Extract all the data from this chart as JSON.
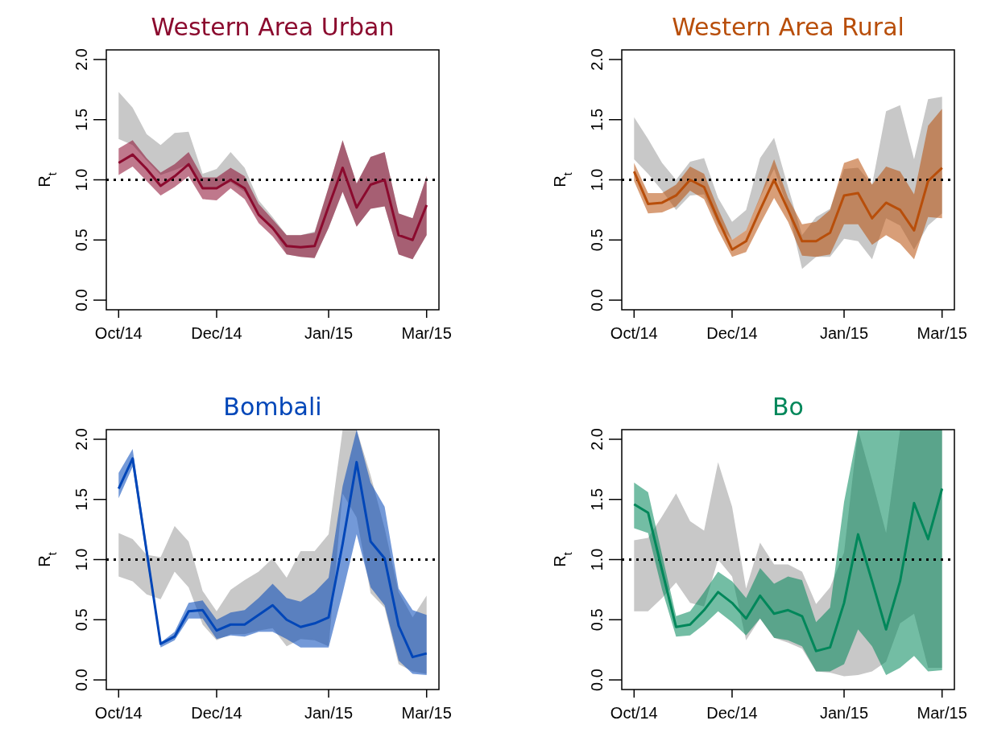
{
  "chart_data": [
    {
      "type": "line",
      "title": "Western Area Urban",
      "ylabel": "R$_{t}$",
      "categories": [
        "Oct/14",
        null,
        null,
        null,
        null,
        null,
        null,
        "Dec/14",
        null,
        null,
        null,
        null,
        null,
        null,
        null,
        "Jan/15",
        null,
        null,
        null,
        null,
        null,
        null,
        "Mar/15"
      ],
      "ylim": [
        -0.08,
        2.08
      ],
      "yticks": [
        {
          "value": 0,
          "label": "0.0"
        },
        {
          "value": 0.5,
          "label": "0.5"
        },
        {
          "value": 1,
          "label": "1.0"
        },
        {
          "value": 1.5,
          "label": "1.5"
        },
        {
          "value": 2,
          "label": "2.0"
        }
      ],
      "ref_lines": [
        {
          "axis": "y",
          "value": 1,
          "line_style": "dotted",
          "color": "#000000"
        }
      ],
      "series": [
        {
          "color": "#c8c8c8",
          "values": [
            null,
            null,
            null,
            null,
            null,
            null,
            null,
            null,
            null,
            null,
            null,
            null,
            null,
            null,
            null,
            null,
            null,
            null,
            null,
            null,
            null,
            null,
            null
          ],
          "lower": [
            1.34,
            1.29,
            1.16,
            1.04,
            1.08,
            1.13,
            0.93,
            0.93,
            0.98,
            0.9,
            0.72,
            0.6,
            0.38,
            0.36,
            0.35,
            0.6,
            0.9,
            0.61,
            0.76,
            0.78,
            0.38,
            0.34,
            0.54
          ],
          "upper": [
            1.73,
            1.6,
            1.38,
            1.29,
            1.39,
            1.4,
            1.05,
            1.09,
            1.23,
            1.1,
            0.83,
            0.69,
            0.54,
            0.54,
            0.57,
            0.94,
            1.33,
            0.97,
            1.19,
            1.23,
            0.72,
            0.68,
            1.03
          ]
        },
        {
          "color": "#8b0a2e",
          "values": [
            1.14,
            1.21,
            1.09,
            0.95,
            1.03,
            1.13,
            0.93,
            0.93,
            1.0,
            0.93,
            0.71,
            0.6,
            0.45,
            0.44,
            0.45,
            0.78,
            1.1,
            0.77,
            0.96,
            1.0,
            0.54,
            0.5,
            0.79
          ],
          "lower": [
            1.04,
            1.11,
            0.99,
            0.87,
            0.94,
            1.03,
            0.84,
            0.83,
            0.93,
            0.84,
            0.64,
            0.53,
            0.38,
            0.36,
            0.35,
            0.6,
            0.9,
            0.61,
            0.76,
            0.78,
            0.38,
            0.34,
            0.54
          ],
          "upper": [
            1.26,
            1.33,
            1.18,
            1.06,
            1.13,
            1.23,
            1.02,
            1.02,
            1.1,
            1.03,
            0.8,
            0.67,
            0.54,
            0.54,
            0.56,
            0.94,
            1.33,
            0.97,
            1.19,
            1.23,
            0.72,
            0.68,
            1.03
          ]
        }
      ]
    },
    {
      "type": "line",
      "title": "Western Area Rural",
      "ylabel": "R$_{t}$",
      "categories": [
        "Oct/14",
        null,
        null,
        null,
        null,
        null,
        null,
        "Dec/14",
        null,
        null,
        null,
        null,
        null,
        null,
        null,
        "Jan/15",
        null,
        null,
        null,
        null,
        null,
        null,
        "Mar/15"
      ],
      "ylim": [
        -0.08,
        2.08
      ],
      "yticks": [
        {
          "value": 0,
          "label": "0.0"
        },
        {
          "value": 0.5,
          "label": "0.5"
        },
        {
          "value": 1,
          "label": "1.0"
        },
        {
          "value": 1.5,
          "label": "1.5"
        },
        {
          "value": 2,
          "label": "2.0"
        }
      ],
      "ref_lines": [
        {
          "axis": "y",
          "value": 1,
          "line_style": "dotted",
          "color": "#000000"
        }
      ],
      "series": [
        {
          "color": "#c8c8c8",
          "values": [
            null,
            null,
            null,
            null,
            null,
            null,
            null,
            null,
            null,
            null,
            null,
            null,
            null,
            null,
            null,
            null,
            null,
            null,
            null,
            null,
            null,
            null,
            null
          ],
          "lower": [
            1.17,
            1.05,
            0.91,
            0.75,
            0.87,
            0.88,
            0.63,
            0.5,
            0.58,
            0.85,
            1.09,
            0.76,
            0.26,
            0.36,
            0.36,
            0.51,
            0.49,
            0.34,
            0.68,
            0.62,
            0.42,
            0.62,
            0.72
          ],
          "upper": [
            1.52,
            1.34,
            1.14,
            1.0,
            1.15,
            1.18,
            0.85,
            0.65,
            0.75,
            1.18,
            1.35,
            0.94,
            0.54,
            0.69,
            0.76,
            1.09,
            1.1,
            0.96,
            1.57,
            1.62,
            1.17,
            1.67,
            1.69
          ]
        },
        {
          "color": "#b84e0a",
          "values": [
            1.07,
            0.8,
            0.81,
            0.87,
            1.0,
            0.94,
            0.67,
            0.42,
            0.49,
            0.75,
            1.0,
            0.75,
            0.49,
            0.49,
            0.56,
            0.87,
            0.89,
            0.68,
            0.81,
            0.75,
            0.58,
            0.99,
            1.1
          ],
          "lower": [
            0.99,
            0.72,
            0.73,
            0.78,
            0.91,
            0.84,
            0.58,
            0.36,
            0.4,
            0.63,
            0.85,
            0.65,
            0.37,
            0.36,
            0.38,
            0.63,
            0.63,
            0.46,
            0.54,
            0.47,
            0.34,
            0.69,
            0.68
          ],
          "upper": [
            1.14,
            0.89,
            0.89,
            0.96,
            1.11,
            1.05,
            0.76,
            0.5,
            0.58,
            0.86,
            1.17,
            0.85,
            0.63,
            0.65,
            0.75,
            1.14,
            1.18,
            0.96,
            1.11,
            1.07,
            0.88,
            1.45,
            1.59
          ]
        }
      ]
    },
    {
      "type": "line",
      "title": "Bombali",
      "ylabel": "R$_{t}$",
      "categories": [
        "Oct/14",
        null,
        null,
        null,
        null,
        null,
        null,
        "Dec/14",
        null,
        null,
        null,
        null,
        null,
        null,
        null,
        "Jan/15",
        null,
        null,
        null,
        null,
        null,
        null,
        "Mar/15"
      ],
      "ylim": [
        -0.08,
        2.08
      ],
      "yticks": [
        {
          "value": 0,
          "label": "0.0"
        },
        {
          "value": 0.5,
          "label": "0.5"
        },
        {
          "value": 1,
          "label": "1.0"
        },
        {
          "value": 1.5,
          "label": "1.5"
        },
        {
          "value": 2,
          "label": "2.0"
        }
      ],
      "ref_lines": [
        {
          "axis": "y",
          "value": 1,
          "line_style": "dotted",
          "color": "#000000"
        }
      ],
      "series": [
        {
          "color": "#c8c8c8",
          "values": [
            null,
            null,
            null,
            null,
            null,
            null,
            null,
            null,
            null,
            null,
            null,
            null,
            null,
            null,
            null,
            null,
            null,
            null,
            null,
            null,
            null,
            null,
            null
          ],
          "lower": [
            0.86,
            0.82,
            0.71,
            0.67,
            0.9,
            0.77,
            0.46,
            0.33,
            0.38,
            0.38,
            0.41,
            0.43,
            0.28,
            0.34,
            0.33,
            0.28,
            1.55,
            1.35,
            0.72,
            0.6,
            0.13,
            0.07,
            0.05
          ],
          "upper": [
            1.22,
            1.17,
            1.04,
            1.02,
            1.28,
            1.15,
            0.74,
            0.57,
            0.75,
            0.83,
            0.9,
            1.01,
            0.85,
            1.07,
            1.07,
            1.21,
            2.08,
            2.08,
            1.7,
            1.26,
            0.73,
            0.52,
            0.7
          ]
        },
        {
          "color": "#0046b8",
          "values": [
            1.59,
            1.84,
            1.07,
            0.3,
            0.36,
            0.57,
            0.58,
            0.41,
            0.46,
            0.46,
            0.54,
            0.62,
            0.5,
            0.44,
            0.47,
            0.52,
            1.13,
            1.81,
            1.15,
            1.01,
            0.45,
            0.19,
            0.22
          ],
          "lower": [
            1.51,
            1.77,
            1.02,
            0.27,
            0.33,
            0.51,
            0.51,
            0.34,
            0.37,
            0.36,
            0.4,
            0.4,
            0.34,
            0.27,
            0.27,
            0.27,
            0.72,
            1.21,
            0.77,
            0.62,
            0.16,
            0.05,
            0.04
          ],
          "upper": [
            1.72,
            1.92,
            1.12,
            0.31,
            0.4,
            0.64,
            0.66,
            0.5,
            0.56,
            0.58,
            0.68,
            0.8,
            0.68,
            0.65,
            0.73,
            0.85,
            1.61,
            2.08,
            1.64,
            1.44,
            0.76,
            0.58,
            0.54
          ]
        }
      ]
    },
    {
      "type": "line",
      "title": "Bo",
      "ylabel": "R$_{t}$",
      "categories": [
        "Oct/14",
        null,
        null,
        null,
        null,
        null,
        null,
        "Dec/14",
        null,
        null,
        null,
        null,
        null,
        null,
        null,
        "Jan/15",
        null,
        null,
        null,
        null,
        null,
        null,
        "Mar/15"
      ],
      "ylim": [
        -0.08,
        2.08
      ],
      "yticks": [
        {
          "value": 0,
          "label": "0.0"
        },
        {
          "value": 0.5,
          "label": "0.5"
        },
        {
          "value": 1,
          "label": "1.0"
        },
        {
          "value": 1.5,
          "label": "1.5"
        },
        {
          "value": 2,
          "label": "2.0"
        }
      ],
      "ref_lines": [
        {
          "axis": "y",
          "value": 1,
          "line_style": "dotted",
          "color": "#000000"
        }
      ],
      "series": [
        {
          "color": "#c8c8c8",
          "values": [
            null,
            null,
            null,
            null,
            null,
            null,
            null,
            null,
            null,
            null,
            null,
            null,
            null,
            null,
            null,
            null,
            null,
            null,
            null,
            null,
            null,
            null,
            null
          ],
          "lower": [
            0.57,
            0.57,
            0.68,
            0.81,
            0.64,
            0.61,
            1.0,
            0.86,
            0.33,
            0.51,
            0.35,
            0.31,
            0.26,
            0.07,
            0.06,
            0.03,
            0.04,
            0.07,
            0.15,
            0.47,
            0.55,
            0.1,
            0.1
          ],
          "upper": [
            1.16,
            1.18,
            1.36,
            1.55,
            1.32,
            1.24,
            1.81,
            1.44,
            0.76,
            1.14,
            0.96,
            0.96,
            0.9,
            0.63,
            0.77,
            1.06,
            2.08,
            1.66,
            1.22,
            2.08,
            2.08,
            2.08,
            2.08
          ]
        },
        {
          "color": "#00875a",
          "values": [
            1.46,
            1.39,
            0.91,
            0.44,
            0.46,
            0.58,
            0.73,
            0.64,
            0.51,
            0.7,
            0.55,
            0.58,
            0.53,
            0.24,
            0.27,
            0.64,
            1.21,
            0.82,
            0.42,
            0.82,
            1.47,
            1.17,
            1.59
          ],
          "lower": [
            1.26,
            1.22,
            0.75,
            0.36,
            0.37,
            0.46,
            0.57,
            0.48,
            0.37,
            0.51,
            0.35,
            0.33,
            0.28,
            0.07,
            0.07,
            0.13,
            0.42,
            0.28,
            0.04,
            0.1,
            0.2,
            0.07,
            0.08
          ],
          "upper": [
            1.64,
            1.56,
            1.04,
            0.53,
            0.57,
            0.73,
            0.9,
            0.82,
            0.68,
            0.93,
            0.8,
            0.86,
            0.83,
            0.48,
            0.6,
            1.48,
            2.08,
            2.08,
            2.08,
            2.08,
            2.08,
            2.08,
            2.08
          ]
        }
      ]
    }
  ]
}
